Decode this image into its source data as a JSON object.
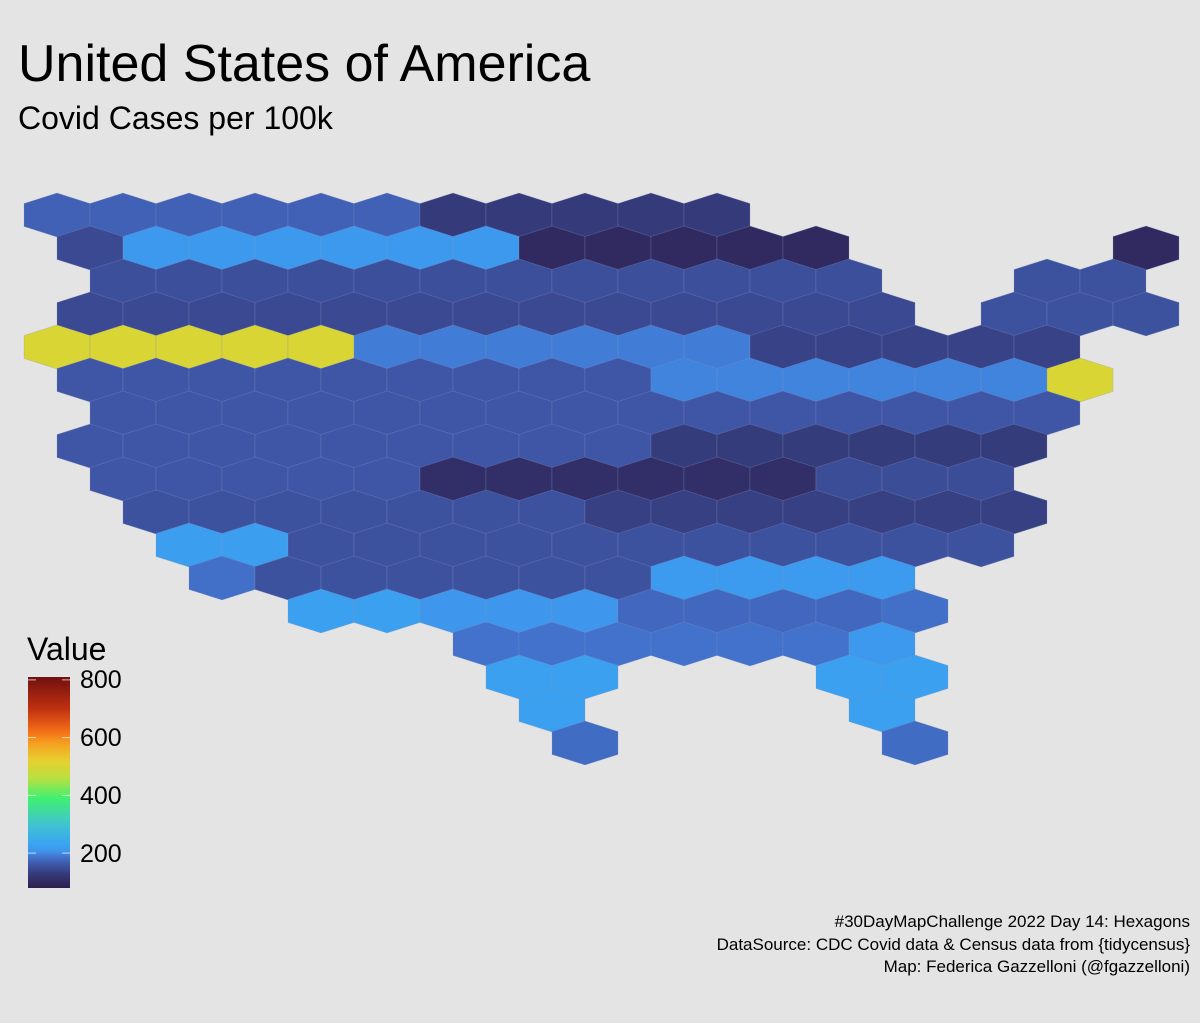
{
  "header": {
    "title": "United States of America",
    "subtitle": "Covid Cases per 100k"
  },
  "caption": {
    "line1": "#30DayMapChallenge 2022 Day 14: Hexagons",
    "line2": "DataSource: CDC Covid data & Census data from {tidycensus}",
    "line3": "Map: Federica Gazzelloni (@fgazzelloni)"
  },
  "chart_data": {
    "type": "heatmap",
    "subtype": "hexbin-map",
    "title": "United States of America",
    "subtitle": "Covid Cases per 100k",
    "legend": {
      "title": "Value",
      "placement": "bottom-left",
      "range": [
        79,
        810
      ],
      "ticks": [
        {
          "value": 800,
          "label": "800"
        },
        {
          "value": 600,
          "label": "600"
        },
        {
          "value": 400,
          "label": "400"
        },
        {
          "value": 200,
          "label": "200"
        }
      ],
      "color_stops": [
        [
          79,
          "#2d1e4e"
        ],
        [
          130,
          "#353c7c"
        ],
        [
          160,
          "#3f56a6"
        ],
        [
          185,
          "#4272cc"
        ],
        [
          205,
          "#3f92ea"
        ],
        [
          230,
          "#3aa4f2"
        ],
        [
          300,
          "#40c4d0"
        ],
        [
          390,
          "#40f070"
        ],
        [
          460,
          "#b8e040"
        ],
        [
          520,
          "#e8d030"
        ],
        [
          580,
          "#f5a020"
        ],
        [
          620,
          "#f57018"
        ],
        [
          700,
          "#c03010"
        ],
        [
          810,
          "#701010"
        ]
      ]
    },
    "hex_rows_note": "each row: list of [start_column, count, value]; columns step by 2 within a row",
    "hex_rows": [
      [
        [
          0,
          6,
          170
        ],
        [
          12,
          5,
          128
        ]
      ],
      [
        [
          1,
          1,
          145
        ],
        [
          3,
          6,
          215
        ],
        [
          15,
          5,
          100
        ],
        [
          33,
          1,
          100
        ]
      ],
      [
        [
          2,
          12,
          152
        ],
        [
          30,
          2,
          155
        ]
      ],
      [
        [
          1,
          13,
          145
        ],
        [
          29,
          3,
          155
        ]
      ],
      [
        [
          0,
          5,
          500
        ],
        [
          10,
          6,
          192
        ],
        [
          22,
          5,
          138
        ]
      ],
      [
        [
          1,
          9,
          160
        ],
        [
          19,
          6,
          196
        ],
        [
          31,
          1,
          500
        ]
      ],
      [
        [
          2,
          15,
          160
        ]
      ],
      [
        [
          1,
          9,
          160
        ],
        [
          19,
          6,
          130
        ]
      ],
      [
        [
          2,
          5,
          160
        ],
        [
          12,
          6,
          108
        ],
        [
          24,
          3,
          150
        ]
      ],
      [
        [
          3,
          7,
          155
        ],
        [
          17,
          7,
          135
        ]
      ],
      [
        [
          4,
          2,
          222
        ],
        [
          8,
          11,
          155
        ]
      ],
      [
        [
          5,
          1,
          182
        ],
        [
          7,
          6,
          155
        ],
        [
          19,
          4,
          218
        ]
      ],
      [
        [
          8,
          2,
          225
        ],
        [
          12,
          3,
          212
        ],
        [
          18,
          4,
          176
        ],
        [
          26,
          1,
          182
        ]
      ],
      [
        [
          13,
          6,
          185
        ],
        [
          25,
          1,
          215
        ]
      ],
      [
        [
          14,
          2,
          224
        ],
        [
          24,
          2,
          224
        ]
      ],
      [
        [
          15,
          1,
          224
        ],
        [
          25,
          1,
          224
        ]
      ],
      [
        [
          16,
          1,
          180
        ],
        [
          26,
          1,
          180
        ]
      ]
    ]
  }
}
